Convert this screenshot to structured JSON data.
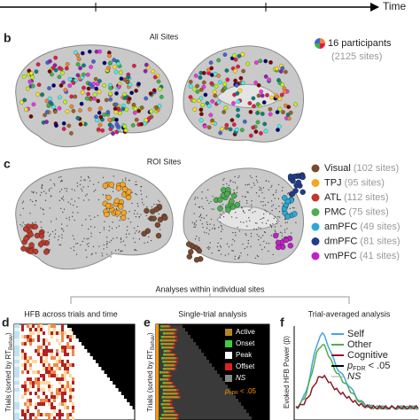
{
  "timeline": {
    "label": "Time"
  },
  "panel_b": {
    "letter": "b",
    "title": "All Sites",
    "legend": {
      "label": "16 participants",
      "sublabel": "(2125 sites)"
    }
  },
  "panel_c": {
    "letter": "c",
    "title": "ROI Sites",
    "legend": [
      {
        "name": "Visual",
        "count": "(102 sites)",
        "color": "#7a4a2e"
      },
      {
        "name": "TPJ",
        "count": "(95 sites)",
        "color": "#f5a623"
      },
      {
        "name": "ATL",
        "count": "(112 sites)",
        "color": "#c0392b"
      },
      {
        "name": "PMC",
        "count": "(75 sites)",
        "color": "#4caf50"
      },
      {
        "name": "amPFC",
        "count": "(49 sites)",
        "color": "#29a9d6"
      },
      {
        "name": "dmPFC",
        "count": "(81 sites)",
        "color": "#1f3d8a"
      },
      {
        "name": "vmPFC",
        "count": "(41 sites)",
        "color": "#c21fc9"
      }
    ]
  },
  "section_title": "Analyses within individual sites",
  "panel_d": {
    "letter": "d",
    "title": "HFB across trials and time",
    "y_label": {
      "text": "Trials (sorted by RT",
      "subscript": "Behav",
      "suffix": ")"
    }
  },
  "panel_e": {
    "letter": "e",
    "title": "Single-trial analysis",
    "y_label": {
      "text": "Trials (sorted by RT",
      "subscript": "Behav",
      "suffix": ")"
    },
    "legend": [
      {
        "name": "Active",
        "color": "#b5891f"
      },
      {
        "name": "Onset",
        "color": "#3ecf3e"
      },
      {
        "name": "Peak",
        "color": "#ffffff"
      },
      {
        "name": "Offset",
        "color": "#e02020"
      },
      {
        "name": "NS",
        "color": "#888888"
      }
    ],
    "sig": {
      "symbol": "p",
      "subscript": "FDR",
      "text": "< .05",
      "color": "#ff9800"
    }
  },
  "panel_f": {
    "letter": "f",
    "title": "Trial-averaged analysis",
    "y_label": "Evoked HFB Power (β)",
    "legend": [
      {
        "name": "Self",
        "color": "#4aa3df"
      },
      {
        "name": "Other",
        "color": "#4caf50"
      },
      {
        "name": "Cognitive",
        "color": "#8b1a2b"
      }
    ],
    "sig": {
      "symbol": "p",
      "subscript": "FDR",
      "text": "< .05"
    },
    "ns": "NS"
  }
}
